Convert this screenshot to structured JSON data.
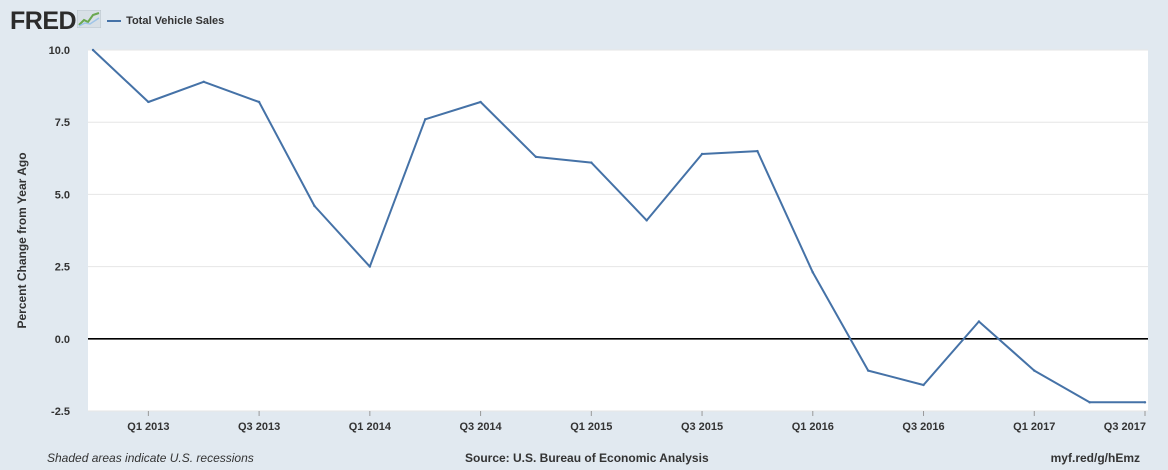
{
  "header": {
    "logo_text": "FRED",
    "legend_label": "Total Vehicle Sales",
    "series_color": "#4572a7"
  },
  "footer": {
    "recessions_note": "Shaded areas indicate U.S. recessions",
    "source": "Source: U.S. Bureau of Economic Analysis",
    "link": "myf.red/g/hEmz"
  },
  "chart_data": {
    "type": "line",
    "title": "",
    "xlabel": "",
    "ylabel": "Percent Change from Year Ago",
    "ylim": [
      -2.5,
      10.0
    ],
    "yticks": [
      "10.0",
      "7.5",
      "5.0",
      "2.5",
      "0.0",
      "-2.5"
    ],
    "xtick_labels": [
      "Q1 2013",
      "Q3 2013",
      "Q1 2014",
      "Q3 2014",
      "Q1 2015",
      "Q3 2015",
      "Q1 2016",
      "Q3 2016",
      "Q1 2017",
      "Q3 2017"
    ],
    "grid": true,
    "series": [
      {
        "name": "Total Vehicle Sales",
        "x": [
          "2012 Q4",
          "Q1 2013",
          "Q2 2013",
          "Q3 2013",
          "Q4 2013",
          "Q1 2014",
          "Q2 2014",
          "Q3 2014",
          "Q4 2014",
          "Q1 2015",
          "Q2 2015",
          "Q3 2015",
          "Q4 2015",
          "Q1 2016",
          "Q2 2016",
          "Q3 2016",
          "Q4 2016",
          "Q1 2017",
          "Q2 2017",
          "Q3 2017"
        ],
        "values": [
          10.0,
          8.2,
          8.9,
          8.2,
          4.6,
          2.5,
          7.6,
          8.2,
          6.3,
          6.1,
          4.1,
          6.4,
          6.5,
          2.3,
          -1.1,
          -1.6,
          0.6,
          -1.1,
          -2.2,
          -2.2
        ]
      }
    ]
  }
}
